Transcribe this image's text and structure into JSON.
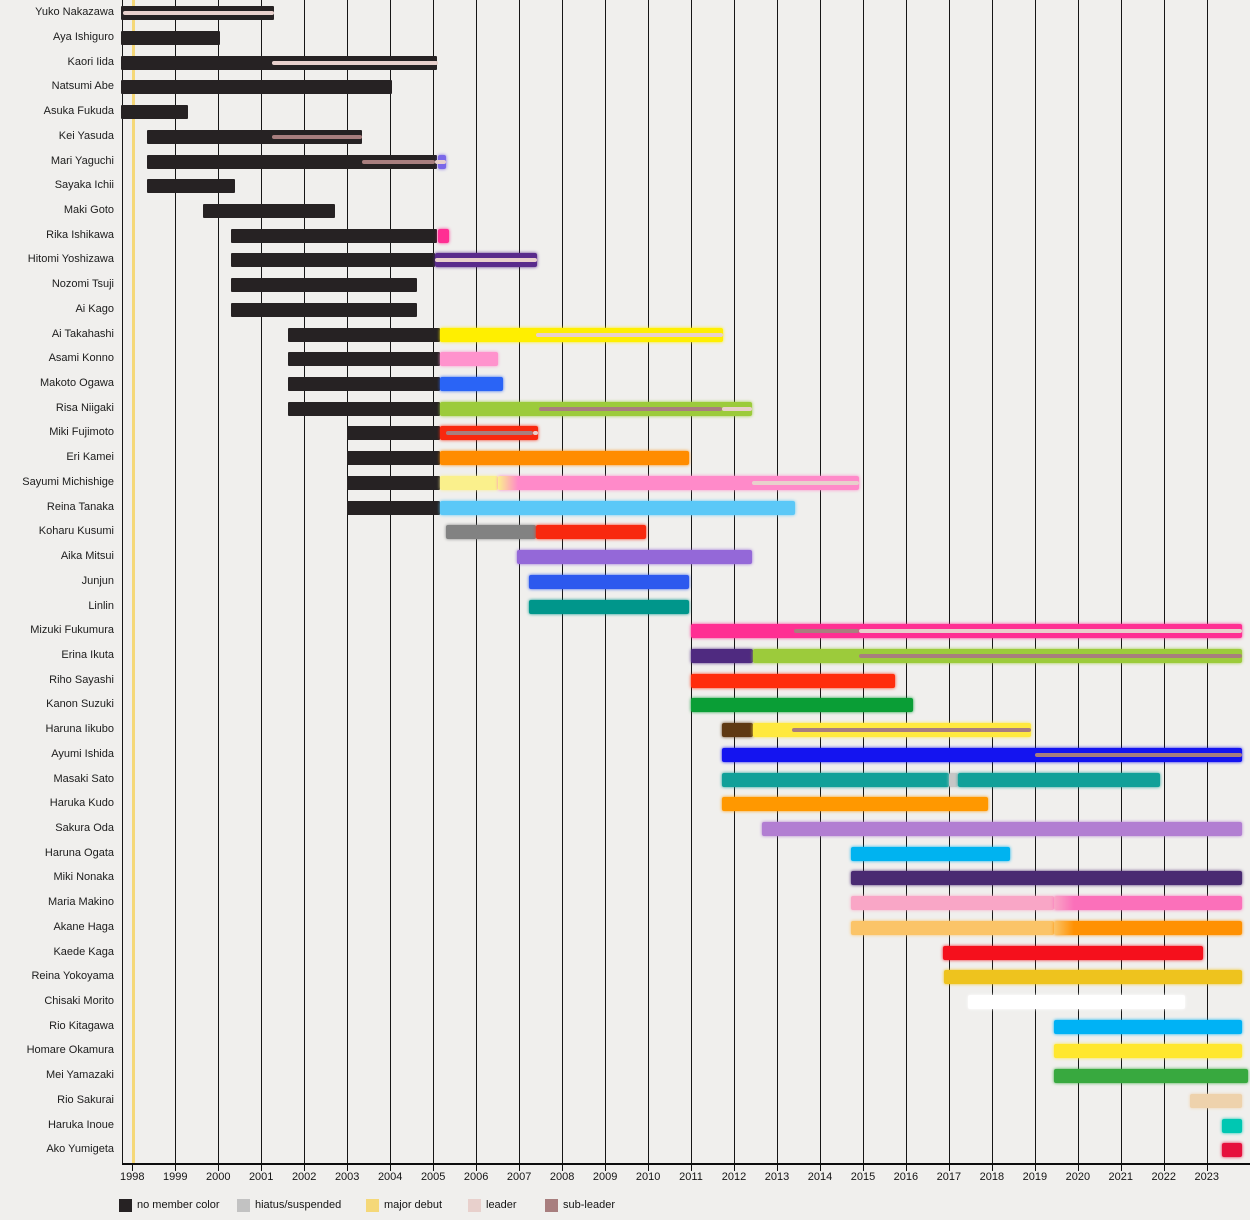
{
  "chart_data": {
    "type": "bar",
    "subtype": "gantt-membership-timeline",
    "title": "",
    "x_axis": {
      "tick_years": [
        1998,
        1999,
        2000,
        2001,
        2002,
        2003,
        2004,
        2005,
        2006,
        2007,
        2008,
        2009,
        2010,
        2011,
        2012,
        2013,
        2014,
        2015,
        2016,
        2017,
        2018,
        2019,
        2020,
        2021,
        2022,
        2023
      ],
      "range": [
        1997.74,
        2023.81
      ],
      "major_debut_marker_year": 1998.02,
      "grid": true
    },
    "stripe_types": {
      "leader": "#e8d0cc",
      "sub": "#a87e7e"
    },
    "present_end": 2023.81,
    "rows": [
      {
        "name": "Yuko Nakazawa",
        "segments": [
          {
            "s": 1997.74,
            "e": 2001.3,
            "c": "#262223",
            "black": true
          }
        ],
        "stripes": [
          {
            "s": 1997.78,
            "e": 2001.3,
            "t": "leader"
          }
        ]
      },
      {
        "name": "Aya Ishiguro",
        "segments": [
          {
            "s": 1997.74,
            "e": 2000.05,
            "c": "#262223",
            "black": true
          }
        ],
        "stripes": []
      },
      {
        "name": "Kaori Iida",
        "segments": [
          {
            "s": 1997.74,
            "e": 2005.1,
            "c": "#262223",
            "black": true
          }
        ],
        "stripes": [
          {
            "s": 2001.25,
            "e": 2005.1,
            "t": "leader"
          }
        ]
      },
      {
        "name": "Natsumi Abe",
        "segments": [
          {
            "s": 1997.74,
            "e": 2004.05,
            "c": "#262223",
            "black": true
          }
        ],
        "stripes": []
      },
      {
        "name": "Asuka Fukuda",
        "segments": [
          {
            "s": 1997.74,
            "e": 1999.3,
            "c": "#262223",
            "black": true
          }
        ],
        "stripes": []
      },
      {
        "name": "Kei Yasuda",
        "segments": [
          {
            "s": 1998.35,
            "e": 2003.35,
            "c": "#262223",
            "black": true
          }
        ],
        "stripes": [
          {
            "s": 2001.25,
            "e": 2003.35,
            "t": "sub"
          }
        ]
      },
      {
        "name": "Mari Yaguchi",
        "segments": [
          {
            "s": 1998.35,
            "e": 2005.1,
            "c": "#262223",
            "black": true
          },
          {
            "s": 2005.1,
            "e": 2005.3,
            "c": "#7b68e8"
          }
        ],
        "stripes": [
          {
            "s": 2003.35,
            "e": 2005.05,
            "t": "sub"
          },
          {
            "s": 2005.05,
            "e": 2005.3,
            "t": "leader"
          }
        ]
      },
      {
        "name": "Sayaka Ichii",
        "segments": [
          {
            "s": 1998.35,
            "e": 2000.4,
            "c": "#262223",
            "black": true
          }
        ],
        "stripes": []
      },
      {
        "name": "Maki Goto",
        "segments": [
          {
            "s": 1999.65,
            "e": 2002.72,
            "c": "#262223",
            "black": true
          }
        ],
        "stripes": []
      },
      {
        "name": "Rika Ishikawa",
        "segments": [
          {
            "s": 2000.3,
            "e": 2005.1,
            "c": "#262223",
            "black": true
          },
          {
            "s": 2005.1,
            "e": 2005.37,
            "c": "#ff2e93"
          }
        ],
        "stripes": []
      },
      {
        "name": "Hitomi Yoshizawa",
        "segments": [
          {
            "s": 2000.3,
            "e": 2005.05,
            "c": "#262223",
            "black": true
          },
          {
            "s": 2005.05,
            "e": 2007.42,
            "c": "#5a2b8c"
          }
        ],
        "stripes": [
          {
            "s": 2005.05,
            "e": 2007.42,
            "t": "leader"
          }
        ]
      },
      {
        "name": "Nozomi Tsuji",
        "segments": [
          {
            "s": 2000.3,
            "e": 2004.62,
            "c": "#262223",
            "black": true
          }
        ],
        "stripes": []
      },
      {
        "name": "Ai Kago",
        "segments": [
          {
            "s": 2000.3,
            "e": 2004.62,
            "c": "#262223",
            "black": true
          }
        ],
        "stripes": []
      },
      {
        "name": "Ai Takahashi",
        "segments": [
          {
            "s": 2001.62,
            "e": 2005.15,
            "c": "#262223",
            "black": true
          },
          {
            "s": 2005.15,
            "e": 2011.75,
            "c": "#ffef00"
          }
        ],
        "stripes": [
          {
            "s": 2007.4,
            "e": 2011.75,
            "t": "leader"
          }
        ]
      },
      {
        "name": "Asami Konno",
        "segments": [
          {
            "s": 2001.62,
            "e": 2005.15,
            "c": "#262223",
            "black": true
          },
          {
            "s": 2005.15,
            "e": 2006.5,
            "c": "#ff93cd"
          }
        ],
        "stripes": []
      },
      {
        "name": "Makoto Ogawa",
        "segments": [
          {
            "s": 2001.62,
            "e": 2005.15,
            "c": "#262223",
            "black": true
          },
          {
            "s": 2005.15,
            "e": 2006.62,
            "c": "#2a64f6"
          }
        ],
        "stripes": []
      },
      {
        "name": "Risa Niigaki",
        "segments": [
          {
            "s": 2001.62,
            "e": 2005.15,
            "c": "#262223",
            "black": true
          },
          {
            "s": 2005.15,
            "e": 2012.42,
            "c": "#9ccb3b"
          }
        ],
        "stripes": [
          {
            "s": 2007.45,
            "e": 2011.72,
            "t": "sub"
          },
          {
            "s": 2011.72,
            "e": 2012.42,
            "t": "leader"
          }
        ]
      },
      {
        "name": "Miki Fujimoto",
        "segments": [
          {
            "s": 2003.0,
            "e": 2005.15,
            "c": "#262223",
            "black": true
          },
          {
            "s": 2005.15,
            "e": 2007.45,
            "c": "#f8290f"
          }
        ],
        "stripes": [
          {
            "s": 2005.3,
            "e": 2007.33,
            "t": "sub"
          },
          {
            "s": 2007.33,
            "e": 2007.45,
            "t": "leader"
          }
        ]
      },
      {
        "name": "Eri Kamei",
        "segments": [
          {
            "s": 2003.0,
            "e": 2005.15,
            "c": "#262223",
            "black": true
          },
          {
            "s": 2005.15,
            "e": 2010.95,
            "c": "#ff8c00"
          }
        ],
        "stripes": []
      },
      {
        "name": "Sayumi Michishige",
        "segments": [
          {
            "s": 2003.0,
            "e": 2005.15,
            "c": "#262223",
            "black": true
          },
          {
            "s": 2005.15,
            "e": 2006.5,
            "c": "#faf08c"
          },
          {
            "s": 2006.5,
            "e": 2014.9,
            "c": "#ff8ac9",
            "fade": "#faf08c"
          }
        ],
        "stripes": [
          {
            "s": 2012.42,
            "e": 2014.9,
            "t": "leader"
          }
        ]
      },
      {
        "name": "Reina Tanaka",
        "segments": [
          {
            "s": 2003.0,
            "e": 2005.15,
            "c": "#262223",
            "black": true
          },
          {
            "s": 2005.15,
            "e": 2013.42,
            "c": "#5bc8f7"
          }
        ],
        "stripes": []
      },
      {
        "name": "Koharu Kusumi",
        "segments": [
          {
            "s": 2005.3,
            "e": 2007.4,
            "c": "#828282"
          },
          {
            "s": 2007.4,
            "e": 2009.95,
            "c": "#f8290f"
          }
        ],
        "stripes": []
      },
      {
        "name": "Aika Mitsui",
        "segments": [
          {
            "s": 2006.95,
            "e": 2012.42,
            "c": "#9468d8"
          }
        ],
        "stripes": []
      },
      {
        "name": "Junjun",
        "segments": [
          {
            "s": 2007.22,
            "e": 2010.95,
            "c": "#2d59ee"
          }
        ],
        "stripes": []
      },
      {
        "name": "Linlin",
        "segments": [
          {
            "s": 2007.22,
            "e": 2010.95,
            "c": "#00968b"
          }
        ],
        "stripes": []
      },
      {
        "name": "Mizuki Fukumura",
        "segments": [
          {
            "s": 2011.0,
            "e": 2023.81,
            "c": "#ff2f93"
          }
        ],
        "stripes": [
          {
            "s": 2013.4,
            "e": 2014.9,
            "t": "sub"
          },
          {
            "s": 2014.9,
            "e": 2023.81,
            "t": "leader"
          }
        ]
      },
      {
        "name": "Erina Ikuta",
        "segments": [
          {
            "s": 2011.0,
            "e": 2012.45,
            "c": "#4f2a80"
          },
          {
            "s": 2012.45,
            "e": 2023.81,
            "c": "#9ccb3b"
          }
        ],
        "stripes": [
          {
            "s": 2014.9,
            "e": 2023.81,
            "t": "sub"
          }
        ]
      },
      {
        "name": "Riho Sayashi",
        "segments": [
          {
            "s": 2011.0,
            "e": 2015.75,
            "c": "#ff2d0d"
          }
        ],
        "stripes": []
      },
      {
        "name": "Kanon Suzuki",
        "segments": [
          {
            "s": 2011.0,
            "e": 2016.17,
            "c": "#0a9e36"
          }
        ],
        "stripes": []
      },
      {
        "name": "Haruna Iikubo",
        "segments": [
          {
            "s": 2011.72,
            "e": 2012.45,
            "c": "#5f3913"
          },
          {
            "s": 2012.45,
            "e": 2018.92,
            "c": "#ffe93e"
          }
        ],
        "stripes": [
          {
            "s": 2013.35,
            "e": 2018.92,
            "t": "sub"
          }
        ]
      },
      {
        "name": "Ayumi Ishida",
        "segments": [
          {
            "s": 2011.72,
            "e": 2023.81,
            "c": "#1414f0"
          }
        ],
        "stripes": [
          {
            "s": 2019.0,
            "e": 2023.81,
            "t": "sub"
          }
        ]
      },
      {
        "name": "Masaki Sato",
        "segments": [
          {
            "s": 2011.72,
            "e": 2017.0,
            "c": "#11a099"
          },
          {
            "s": 2017.0,
            "e": 2017.22,
            "c": "#c6c6c6"
          },
          {
            "s": 2017.22,
            "e": 2021.92,
            "c": "#11a099"
          }
        ],
        "stripes": []
      },
      {
        "name": "Haruka Kudo",
        "segments": [
          {
            "s": 2011.72,
            "e": 2017.9,
            "c": "#ff9800"
          }
        ],
        "stripes": []
      },
      {
        "name": "Sakura Oda",
        "segments": [
          {
            "s": 2012.65,
            "e": 2023.81,
            "c": "#b27ed2"
          }
        ],
        "stripes": []
      },
      {
        "name": "Haruna Ogata",
        "segments": [
          {
            "s": 2014.72,
            "e": 2018.42,
            "c": "#00b3f0"
          }
        ],
        "stripes": []
      },
      {
        "name": "Miki Nonaka",
        "segments": [
          {
            "s": 2014.72,
            "e": 2023.81,
            "c": "#4a2a72"
          }
        ],
        "stripes": []
      },
      {
        "name": "Maria Makino",
        "segments": [
          {
            "s": 2014.72,
            "e": 2019.45,
            "c": "#f9a6c6"
          },
          {
            "s": 2019.45,
            "e": 2023.81,
            "c": "#fb70ba",
            "fade": "#f9a6c6"
          }
        ],
        "stripes": []
      },
      {
        "name": "Akane Haga",
        "segments": [
          {
            "s": 2014.72,
            "e": 2019.45,
            "c": "#fbc468"
          },
          {
            "s": 2019.45,
            "e": 2023.81,
            "c": "#ff9102",
            "fade": "#fbc468"
          }
        ],
        "stripes": []
      },
      {
        "name": "Kaede Kaga",
        "segments": [
          {
            "s": 2016.85,
            "e": 2022.92,
            "c": "#f5101c"
          }
        ],
        "stripes": []
      },
      {
        "name": "Reina Yokoyama",
        "segments": [
          {
            "s": 2016.88,
            "e": 2023.81,
            "c": "#eec31e"
          }
        ],
        "stripes": []
      },
      {
        "name": "Chisaki Morito",
        "segments": [
          {
            "s": 2017.44,
            "e": 2022.5,
            "c": "#ffffff"
          }
        ],
        "stripes": []
      },
      {
        "name": "Rio Kitagawa",
        "segments": [
          {
            "s": 2019.45,
            "e": 2023.81,
            "c": "#00b2f5"
          }
        ],
        "stripes": []
      },
      {
        "name": "Homare Okamura",
        "segments": [
          {
            "s": 2019.45,
            "e": 2023.81,
            "c": "#ffe72e"
          }
        ],
        "stripes": []
      },
      {
        "name": "Mei Yamazaki",
        "segments": [
          {
            "s": 2019.45,
            "e": 2023.95,
            "c": "#38a93f"
          }
        ],
        "stripes": []
      },
      {
        "name": "Rio Sakurai",
        "segments": [
          {
            "s": 2022.6,
            "e": 2023.81,
            "c": "#eed2ac"
          }
        ],
        "stripes": []
      },
      {
        "name": "Haruka Inoue",
        "segments": [
          {
            "s": 2023.35,
            "e": 2023.81,
            "c": "#00c7b2"
          }
        ],
        "stripes": []
      },
      {
        "name": "Ako Yumigeta",
        "segments": [
          {
            "s": 2023.35,
            "e": 2023.81,
            "c": "#e6103c"
          }
        ],
        "stripes": []
      }
    ],
    "legend": [
      {
        "label": "no member color",
        "color": "#262223"
      },
      {
        "label": "hiatus/suspended",
        "color": "#c2c2c2"
      },
      {
        "label": "major debut",
        "color": "#f5d878"
      },
      {
        "label": "leader",
        "color": "#e8d0cc"
      },
      {
        "label": "sub-leader",
        "color": "#a87e7e"
      }
    ],
    "colors": {
      "background": "#f0efed",
      "gridline": "#161616",
      "major_debut_line": "#f5d878"
    }
  }
}
